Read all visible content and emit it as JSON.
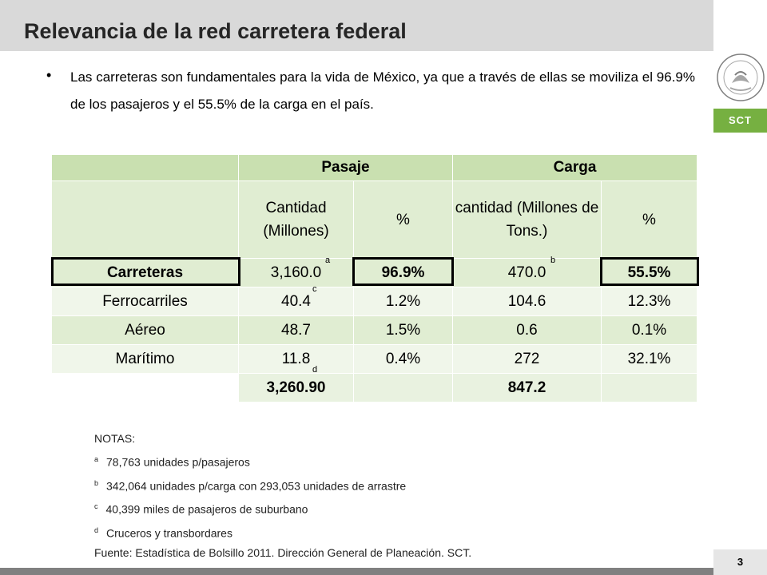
{
  "header": {
    "title": "Relevancia de la red carretera federal"
  },
  "logo": {
    "band_text": "SCT",
    "seal_text": "ESTADOS UNIDOS MEXICANOS",
    "band_color": "#76b041"
  },
  "bullet": {
    "text": "Las carreteras son fundamentales para la vida de México, ya que a través de ellas se moviliza el 96.9% de los pasajeros y el 55.5% de la carga en el país."
  },
  "table": {
    "groups": [
      "Pasaje",
      "Carga"
    ],
    "subheaders": [
      "Cantidad (Millones)",
      "%",
      "cantidad (Millones de Tons.)",
      "%"
    ],
    "rows": [
      {
        "label": "Carreteras",
        "c1": "3,160.0",
        "c1_note": "a",
        "c2": "96.9%",
        "c3": "470.0",
        "c3_note": "b",
        "c4": "55.5%"
      },
      {
        "label": "Ferrocarriles",
        "c1": "40.4",
        "c1_note": "c",
        "c2": "1.2%",
        "c3": "104.6",
        "c3_note": "",
        "c4": "12.3%"
      },
      {
        "label": "Aéreo",
        "c1": "48.7",
        "c1_note": "",
        "c2": "1.5%",
        "c3": "0.6",
        "c3_note": "",
        "c4": "0.1%"
      },
      {
        "label": "Marítimo",
        "c1": "11.8",
        "c1_note": "d",
        "c2": "0.4%",
        "c3": "272",
        "c3_note": "",
        "c4": "32.1%"
      }
    ],
    "totals": {
      "c1": "3,260.90",
      "c3": "847.2"
    }
  },
  "notes": {
    "heading": "NOTAS:",
    "items": [
      {
        "mark": "a",
        "text": "78,763 unidades p/pasajeros"
      },
      {
        "mark": "b",
        "text": "342,064 unidades p/carga con 293,053 unidades de arrastre"
      },
      {
        "mark": "c",
        "text": "40,399 miles de pasajeros de suburbano"
      },
      {
        "mark": "d",
        "text": "Cruceros y transbordares"
      }
    ]
  },
  "source": "Fuente:  Estadística de Bolsillo 2011. Dirección General de Planeación. SCT.",
  "footer": {
    "page": "3"
  }
}
